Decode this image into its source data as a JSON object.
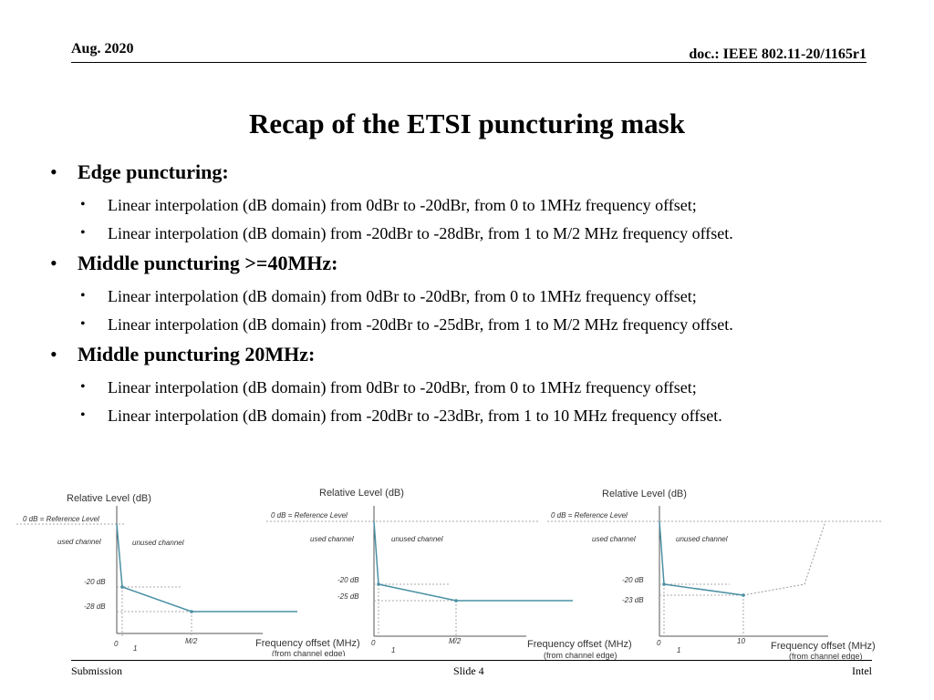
{
  "header": {
    "date": "Aug. 2020",
    "doc": "doc.: IEEE 802.11-20/1165r1"
  },
  "title": "Recap of the ETSI puncturing mask",
  "sections": [
    {
      "heading": "Edge puncturing:",
      "items": [
        "Linear interpolation (dB domain) from 0dBr to -20dBr, from 0 to 1MHz frequency offset;",
        "Linear interpolation (dB domain) from -20dBr to -28dBr, from 1 to M/2 MHz frequency offset."
      ]
    },
    {
      "heading": "Middle puncturing >=40MHz:",
      "items": [
        "Linear interpolation (dB domain) from 0dBr to -20dBr, from 0 to 1MHz frequency offset;",
        "Linear interpolation (dB domain) from -20dBr to -25dBr, from 1 to M/2 MHz frequency offset."
      ]
    },
    {
      "heading": "Middle puncturing 20MHz:",
      "items": [
        "Linear interpolation (dB domain) from 0dBr to -20dBr, from 0 to 1MHz frequency offset;",
        "Linear interpolation (dB domain) from -20dBr to -23dBr, from 1 to 10 MHz frequency offset."
      ]
    }
  ],
  "chart_data": [
    {
      "type": "line",
      "title": "Relative Level (dB)",
      "ylabel": "Relative Level (dB)",
      "xlabel": "Frequency offset (MHz)",
      "xlabel_note": "(from channel edge)",
      "ref_label": "0 dB = Reference Level",
      "used_label": "used channel",
      "unused_label": "unused channel",
      "x_ticks": [
        "0",
        "1",
        "M/2"
      ],
      "y_ticks": [
        "-20 dB",
        "-28 dB"
      ],
      "points": [
        {
          "x": "0",
          "y": 0
        },
        {
          "x": "1",
          "y": -20
        },
        {
          "x": "M/2",
          "y": -28
        }
      ],
      "color": "#4a90a4"
    },
    {
      "type": "line",
      "title": "Relative Level (dB)",
      "ylabel": "Relative Level (dB)",
      "xlabel": "Frequency offset (MHz)",
      "xlabel_note": "(from channel edge)",
      "ref_label": "0 dB = Reference Level",
      "used_label": "used channel",
      "unused_label": "unused channel",
      "x_ticks": [
        "0",
        "1",
        "M/2"
      ],
      "y_ticks": [
        "-20 dB",
        "-25 dB"
      ],
      "points": [
        {
          "x": "0",
          "y": 0
        },
        {
          "x": "1",
          "y": -20
        },
        {
          "x": "M/2",
          "y": -25
        }
      ],
      "color": "#4a90a4"
    },
    {
      "type": "line",
      "title": "Relative Level (dB)",
      "ylabel": "Relative Level (dB)",
      "xlabel": "Frequency offset (MHz)",
      "xlabel_note": "(from channel edge)",
      "ref_label": "0 dB = Reference Level",
      "used_label": "used channel",
      "unused_label": "unused channel",
      "x_ticks": [
        "0",
        "1",
        "10"
      ],
      "y_ticks": [
        "-20 dB",
        "-23 dB"
      ],
      "points": [
        {
          "x": "0",
          "y": 0
        },
        {
          "x": "1",
          "y": -20
        },
        {
          "x": "10",
          "y": -23
        }
      ],
      "color": "#4a90a4"
    }
  ],
  "footer": {
    "left": "Submission",
    "center": "Slide 4",
    "right": "Intel"
  }
}
